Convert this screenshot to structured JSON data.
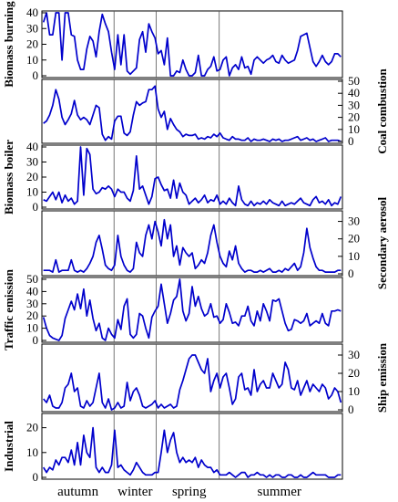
{
  "chart_data": {
    "type": "line",
    "line_color": "#0000cc",
    "frame_color": "#000000",
    "season_divider_color": "#555555",
    "x_range": [
      0,
      100
    ],
    "season_dividers": [
      24,
      38,
      59
    ],
    "seasons": [
      {
        "label": "autumn",
        "x": 12
      },
      {
        "label": "winter",
        "x": 31
      },
      {
        "label": "spring",
        "x": 49
      },
      {
        "label": "summer",
        "x": 79
      }
    ],
    "panels": [
      {
        "ylabel": "Biomass burning",
        "axis_side": "left",
        "ylim": [
          0,
          40
        ],
        "yticks": [
          "0",
          "10",
          "20",
          "30",
          "40"
        ],
        "y": [
          34,
          40,
          26,
          26,
          40,
          40,
          10,
          40,
          40,
          26,
          25,
          10,
          4,
          4,
          17,
          25,
          22,
          12,
          28,
          39,
          33,
          28,
          15,
          4,
          26,
          7,
          26,
          3,
          1,
          3,
          5,
          23,
          28,
          15,
          33,
          28,
          24,
          14,
          16,
          7,
          24,
          0,
          0,
          3,
          2,
          10,
          4,
          0,
          0,
          2,
          13,
          0,
          0,
          4,
          6,
          12,
          3,
          4,
          10,
          12,
          0,
          5,
          7,
          4,
          12,
          5,
          6,
          1,
          10,
          12,
          10,
          8,
          10,
          11,
          13,
          9,
          8,
          13,
          10,
          8,
          9,
          10,
          16,
          25,
          26,
          27,
          18,
          9,
          6,
          9,
          13,
          9,
          7,
          9,
          14,
          14,
          12
        ]
      },
      {
        "ylabel": "Coal combustion",
        "axis_side": "right",
        "ylim": [
          0,
          50
        ],
        "yticks": [
          "0",
          "10",
          "20",
          "30",
          "40",
          "50"
        ],
        "y": [
          15,
          17,
          22,
          30,
          43,
          35,
          20,
          14,
          18,
          23,
          34,
          22,
          18,
          20,
          18,
          14,
          22,
          30,
          28,
          6,
          1,
          4,
          2,
          17,
          21,
          21,
          7,
          5,
          8,
          22,
          33,
          30,
          32,
          33,
          43,
          43,
          46,
          27,
          20,
          25,
          10,
          19,
          14,
          10,
          8,
          4,
          6,
          5,
          5,
          6,
          2,
          3,
          2,
          4,
          3,
          6,
          4,
          7,
          3,
          2,
          1,
          4,
          2,
          2,
          1,
          1,
          3,
          0,
          2,
          1,
          1,
          2,
          1,
          0,
          2,
          1,
          2,
          0,
          1,
          1,
          2,
          3,
          4,
          1,
          2,
          3,
          1,
          2,
          0,
          1,
          2,
          3,
          0,
          1,
          1,
          1,
          0
        ]
      },
      {
        "ylabel": "Biomass boiler",
        "axis_side": "left",
        "ylim": [
          0,
          40
        ],
        "yticks": [
          "0",
          "10",
          "20",
          "30",
          "40"
        ],
        "y": [
          5,
          4,
          7,
          10,
          5,
          10,
          3,
          8,
          4,
          6,
          2,
          4,
          40,
          8,
          39,
          35,
          12,
          9,
          10,
          13,
          12,
          14,
          12,
          7,
          12,
          10,
          10,
          6,
          4,
          11,
          34,
          12,
          14,
          8,
          2,
          7,
          19,
          20,
          15,
          11,
          12,
          6,
          18,
          6,
          16,
          10,
          8,
          2,
          4,
          6,
          3,
          5,
          8,
          3,
          5,
          4,
          8,
          2,
          4,
          2,
          6,
          3,
          1,
          14,
          5,
          2,
          1,
          4,
          1,
          3,
          2,
          4,
          2,
          5,
          3,
          2,
          1,
          4,
          1,
          2,
          3,
          2,
          4,
          6,
          3,
          2,
          1,
          5,
          7,
          3,
          4,
          2,
          5,
          1,
          3,
          2,
          7
        ]
      },
      {
        "ylabel": "Secondary aerosol",
        "axis_side": "right",
        "ylim": [
          0,
          35
        ],
        "yticks": [
          "0",
          "10",
          "20",
          "30"
        ],
        "y": [
          2,
          2,
          2,
          1,
          8,
          1,
          2,
          2,
          2,
          8,
          2,
          1,
          2,
          1,
          3,
          6,
          10,
          18,
          22,
          14,
          5,
          3,
          2,
          5,
          22,
          10,
          5,
          2,
          1,
          3,
          18,
          12,
          10,
          22,
          28,
          20,
          30,
          24,
          16,
          31,
          20,
          28,
          10,
          16,
          5,
          15,
          12,
          10,
          12,
          3,
          5,
          8,
          6,
          12,
          22,
          28,
          18,
          10,
          6,
          4,
          13,
          8,
          16,
          6,
          3,
          1,
          2,
          2,
          1,
          1,
          2,
          1,
          2,
          3,
          1,
          1,
          2,
          1,
          3,
          2,
          4,
          6,
          2,
          4,
          12,
          26,
          15,
          9,
          4,
          2,
          2,
          1,
          1,
          1,
          1,
          2,
          2
        ]
      },
      {
        "ylabel": "Traffic emission",
        "axis_side": "left",
        "ylim": [
          0,
          50
        ],
        "yticks": [
          "0",
          "10",
          "20",
          "30",
          "40",
          "50"
        ],
        "y": [
          19,
          10,
          4,
          2,
          1,
          0,
          4,
          18,
          25,
          32,
          25,
          38,
          26,
          42,
          20,
          33,
          18,
          8,
          14,
          2,
          0,
          10,
          5,
          2,
          17,
          9,
          28,
          34,
          5,
          2,
          5,
          22,
          20,
          10,
          2,
          19,
          24,
          28,
          46,
          30,
          14,
          22,
          33,
          36,
          50,
          24,
          16,
          22,
          44,
          28,
          36,
          26,
          20,
          22,
          30,
          19,
          20,
          14,
          17,
          30,
          23,
          14,
          15,
          12,
          20,
          20,
          28,
          16,
          12,
          24,
          16,
          30,
          24,
          16,
          33,
          32,
          34,
          24,
          14,
          8,
          9,
          17,
          16,
          14,
          16,
          22,
          12,
          14,
          16,
          14,
          22,
          14,
          12,
          24,
          24,
          25,
          24
        ]
      },
      {
        "ylabel": "Ship emission",
        "axis_side": "right",
        "ylim": [
          0,
          35
        ],
        "yticks": [
          "0",
          "10",
          "20",
          "30"
        ],
        "y": [
          6,
          4,
          8,
          2,
          1,
          1,
          4,
          12,
          14,
          20,
          10,
          12,
          2,
          1,
          5,
          2,
          4,
          12,
          20,
          4,
          1,
          6,
          0,
          1,
          4,
          1,
          2,
          15,
          5,
          10,
          12,
          8,
          2,
          1,
          2,
          3,
          5,
          1,
          3,
          1,
          2,
          3,
          1,
          2,
          11,
          16,
          22,
          28,
          30,
          30,
          26,
          22,
          20,
          28,
          10,
          16,
          20,
          12,
          18,
          20,
          12,
          3,
          6,
          18,
          20,
          11,
          12,
          8,
          22,
          10,
          14,
          16,
          12,
          12,
          20,
          16,
          12,
          14,
          26,
          22,
          12,
          11,
          16,
          8,
          12,
          16,
          10,
          14,
          12,
          10,
          14,
          12,
          6,
          8,
          12,
          10,
          4
        ]
      },
      {
        "ylabel": "Industrial",
        "axis_side": "left",
        "ylim": [
          0,
          25
        ],
        "yticks": [
          "0",
          "10",
          "20"
        ],
        "y": [
          4,
          2,
          4,
          3,
          7,
          5,
          8,
          8,
          6,
          11,
          5,
          14,
          5,
          17,
          10,
          8,
          20,
          4,
          2,
          4,
          2,
          2,
          5,
          19,
          4,
          5,
          3,
          2,
          1,
          3,
          6,
          4,
          2,
          1,
          1,
          1,
          2,
          2,
          10,
          19,
          10,
          15,
          18,
          10,
          6,
          8,
          6,
          7,
          6,
          8,
          4,
          7,
          5,
          4,
          4,
          2,
          3,
          1,
          1,
          1,
          2,
          1,
          0,
          1,
          2,
          2,
          0,
          1,
          1,
          2,
          1,
          1,
          0,
          1,
          0,
          1,
          1,
          0,
          0,
          1,
          1,
          0,
          0,
          1,
          0,
          0,
          1,
          2,
          1,
          1,
          1,
          1,
          0,
          0,
          0,
          1,
          1
        ]
      }
    ]
  }
}
